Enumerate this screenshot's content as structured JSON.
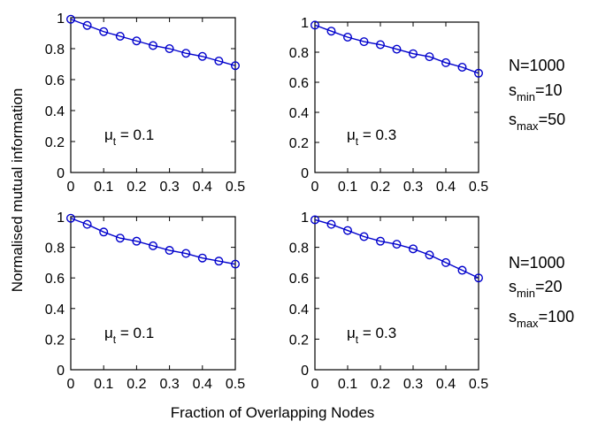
{
  "figure": {
    "xlabel": "Fraction of Overlapping Nodes",
    "ylabel": "Normalised mutual information",
    "line_color": "#0000cc",
    "marker": "open-circle"
  },
  "chart_data": [
    {
      "type": "line",
      "panel": "top-left",
      "annotation": {
        "mu": "μ",
        "sub": "t",
        "value": " = 0.1"
      },
      "x": [
        0,
        0.05,
        0.1,
        0.15,
        0.2,
        0.25,
        0.3,
        0.35,
        0.4,
        0.45,
        0.5
      ],
      "series": [
        {
          "values": [
            0.99,
            0.95,
            0.91,
            0.88,
            0.85,
            0.82,
            0.8,
            0.77,
            0.75,
            0.72,
            0.69
          ]
        }
      ],
      "xlim": [
        0,
        0.5
      ],
      "ylim": [
        0,
        1
      ],
      "xticks": [
        "0",
        "0.1",
        "0.2",
        "0.3",
        "0.4",
        "0.5"
      ],
      "yticks": [
        "0",
        "0.2",
        "0.4",
        "0.6",
        "0.8",
        "1"
      ]
    },
    {
      "type": "line",
      "panel": "top-right",
      "annotation": {
        "mu": "μ",
        "sub": "t",
        "value": " = 0.3"
      },
      "x": [
        0,
        0.05,
        0.1,
        0.15,
        0.2,
        0.25,
        0.3,
        0.35,
        0.4,
        0.45,
        0.5
      ],
      "series": [
        {
          "values": [
            0.98,
            0.94,
            0.9,
            0.87,
            0.85,
            0.82,
            0.79,
            0.77,
            0.73,
            0.7,
            0.66
          ]
        }
      ],
      "xlim": [
        0,
        0.5
      ],
      "ylim": [
        0,
        1
      ],
      "xticks": [
        "0",
        "0.1",
        "0.2",
        "0.3",
        "0.4",
        "0.5"
      ],
      "yticks": [
        "0",
        "0.2",
        "0.4",
        "0.6",
        "0.8",
        "1"
      ]
    },
    {
      "type": "line",
      "panel": "bottom-left",
      "annotation": {
        "mu": "μ",
        "sub": "t",
        "value": " = 0.1"
      },
      "x": [
        0,
        0.05,
        0.1,
        0.15,
        0.2,
        0.25,
        0.3,
        0.35,
        0.4,
        0.45,
        0.5
      ],
      "series": [
        {
          "values": [
            0.99,
            0.95,
            0.9,
            0.86,
            0.84,
            0.81,
            0.78,
            0.76,
            0.73,
            0.71,
            0.69
          ]
        }
      ],
      "xlim": [
        0,
        0.5
      ],
      "ylim": [
        0,
        1
      ],
      "xticks": [
        "0",
        "0.1",
        "0.2",
        "0.3",
        "0.4",
        "0.5"
      ],
      "yticks": [
        "0",
        "0.2",
        "0.4",
        "0.6",
        "0.8",
        "1"
      ]
    },
    {
      "type": "line",
      "panel": "bottom-right",
      "annotation": {
        "mu": "μ",
        "sub": "t",
        "value": " = 0.3"
      },
      "x": [
        0,
        0.05,
        0.1,
        0.15,
        0.2,
        0.25,
        0.3,
        0.35,
        0.4,
        0.45,
        0.5
      ],
      "series": [
        {
          "values": [
            0.98,
            0.95,
            0.91,
            0.87,
            0.84,
            0.82,
            0.79,
            0.75,
            0.7,
            0.65,
            0.6
          ]
        }
      ],
      "xlim": [
        0,
        0.5
      ],
      "ylim": [
        0,
        1
      ],
      "xticks": [
        "0",
        "0.1",
        "0.2",
        "0.3",
        "0.4",
        "0.5"
      ],
      "yticks": [
        "0",
        "0.2",
        "0.4",
        "0.6",
        "0.8",
        "1"
      ]
    }
  ],
  "side_labels": [
    {
      "n": "N=1000",
      "smin_s": "s",
      "smin_sub": "min",
      "smin_val": "=10",
      "smax_s": "s",
      "smax_sub": "max",
      "smax_val": "=50"
    },
    {
      "n": "N=1000",
      "smin_s": "s",
      "smin_sub": "min",
      "smin_val": "=20",
      "smax_s": "s",
      "smax_sub": "max",
      "smax_val": "=100"
    }
  ]
}
